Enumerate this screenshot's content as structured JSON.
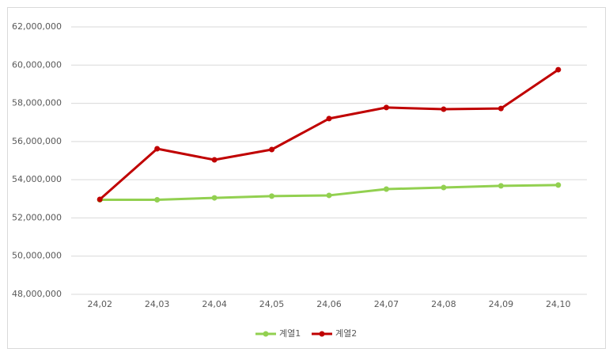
{
  "chart_data": {
    "type": "line",
    "categories": [
      "24,02",
      "24,03",
      "24,04",
      "24,05",
      "24,06",
      "24,07",
      "24,08",
      "24,09",
      "24,10"
    ],
    "series": [
      {
        "name": "계열1",
        "color": "#92d050",
        "values": [
          52950000,
          52950000,
          53050000,
          53140000,
          53180000,
          53510000,
          53590000,
          53680000,
          53720000
        ]
      },
      {
        "name": "계열2",
        "color": "#c00000",
        "values": [
          52970000,
          55620000,
          55040000,
          55580000,
          57200000,
          57780000,
          57690000,
          57730000,
          59760000
        ]
      }
    ],
    "ylim": [
      48000000,
      62000000
    ],
    "yticks": [
      {
        "value": 48000000,
        "label": "48,000,000"
      },
      {
        "value": 50000000,
        "label": "50,000,000"
      },
      {
        "value": 52000000,
        "label": "52,000,000"
      },
      {
        "value": 54000000,
        "label": "54,000,000"
      },
      {
        "value": 56000000,
        "label": "56,000,000"
      },
      {
        "value": 58000000,
        "label": "58,000,000"
      },
      {
        "value": 60000000,
        "label": "60,000,000"
      },
      {
        "value": 62000000,
        "label": "62,000,000"
      }
    ],
    "grid": true,
    "legend": "bottom"
  }
}
